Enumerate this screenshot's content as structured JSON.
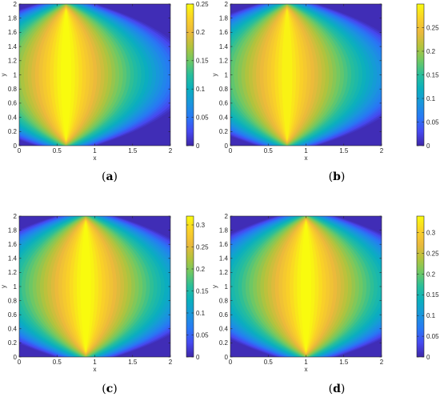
{
  "chart_data": [
    {
      "type": "heatmap",
      "caption_letter": "a",
      "xlabel": "x",
      "ylabel": "y",
      "xlim": [
        0,
        2
      ],
      "ylim": [
        0,
        2
      ],
      "x_ticks": [
        "0",
        "0.5",
        "1",
        "1.5",
        "2"
      ],
      "y_ticks": [
        "0",
        "0.2",
        "0.4",
        "0.6",
        "0.8",
        "1",
        "1.2",
        "1.4",
        "1.6",
        "1.8",
        "2"
      ],
      "colorbar": {
        "min": 0,
        "max": 0.25,
        "ticks": [
          "0",
          "0.05",
          "0.1",
          "0.15",
          "0.2",
          "0.25"
        ]
      },
      "peak_value": 0.25,
      "peak_location": [
        0.62,
        1.0
      ],
      "colormap": "parula"
    },
    {
      "type": "heatmap",
      "caption_letter": "b",
      "xlabel": "x",
      "ylabel": "y",
      "xlim": [
        0,
        2
      ],
      "ylim": [
        0,
        2
      ],
      "x_ticks": [
        "0",
        "0.5",
        "1",
        "1.5",
        "2"
      ],
      "y_ticks": [
        "0",
        "0.2",
        "0.4",
        "0.6",
        "0.8",
        "1",
        "1.2",
        "1.4",
        "1.6",
        "1.8",
        "2"
      ],
      "colorbar": {
        "min": 0,
        "max": 0.3,
        "ticks": [
          "0",
          "0.05",
          "0.1",
          "0.15",
          "0.2",
          "0.25"
        ]
      },
      "peak_value": 0.29,
      "peak_location": [
        0.75,
        1.0
      ],
      "colormap": "parula"
    },
    {
      "type": "heatmap",
      "caption_letter": "c",
      "xlabel": "x",
      "ylabel": "y",
      "xlim": [
        0,
        2
      ],
      "ylim": [
        0,
        2
      ],
      "x_ticks": [
        "0",
        "0.5",
        "1",
        "1.5",
        "2"
      ],
      "y_ticks": [
        "0",
        "0.2",
        "0.4",
        "0.6",
        "0.8",
        "1",
        "1.2",
        "1.4",
        "1.6",
        "1.8",
        "2"
      ],
      "colorbar": {
        "min": 0,
        "max": 0.32,
        "ticks": [
          "0",
          "0.05",
          "0.1",
          "0.15",
          "0.2",
          "0.25",
          "0.3"
        ]
      },
      "peak_value": 0.32,
      "peak_location": [
        0.88,
        1.0
      ],
      "colormap": "parula"
    },
    {
      "type": "heatmap",
      "caption_letter": "d",
      "xlabel": "x",
      "ylabel": "y",
      "xlim": [
        0,
        2
      ],
      "ylim": [
        0,
        2
      ],
      "x_ticks": [
        "0",
        "0.5",
        "1",
        "1.5",
        "2"
      ],
      "y_ticks": [
        "0",
        "0.2",
        "0.4",
        "0.6",
        "0.8",
        "1",
        "1.2",
        "1.4",
        "1.6",
        "1.8",
        "2"
      ],
      "colorbar": {
        "min": 0,
        "max": 0.34,
        "ticks": [
          "0",
          "0.05",
          "0.1",
          "0.15",
          "0.2",
          "0.25",
          "0.3"
        ]
      },
      "peak_value": 0.34,
      "peak_location": [
        1.0,
        1.0
      ],
      "colormap": "parula"
    }
  ]
}
